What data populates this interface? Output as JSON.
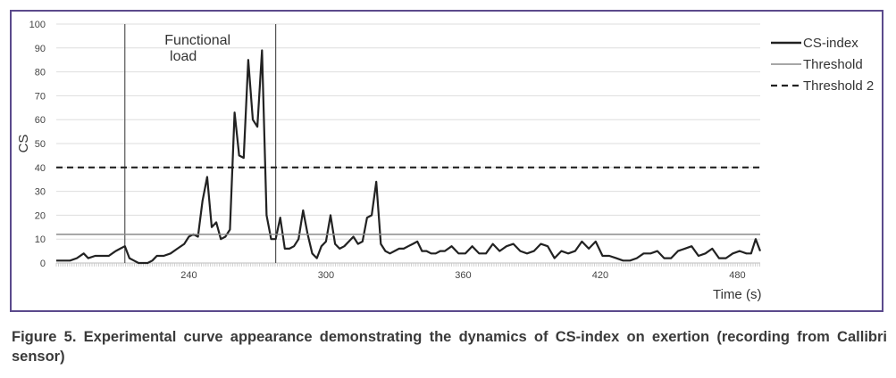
{
  "caption": "Figure 5. Experimental curve appearance demonstrating the dynamics of CS-index on exertion (recording from Callibri sensor)",
  "chart_data": {
    "type": "line",
    "xlabel": "Time (s)",
    "ylabel": "CS",
    "xlim": [
      182,
      490
    ],
    "ylim": [
      0,
      100
    ],
    "x_ticks": [
      240,
      300,
      360,
      420,
      480
    ],
    "y_ticks": [
      0,
      10,
      20,
      30,
      40,
      50,
      60,
      70,
      80,
      90,
      100
    ],
    "grid": "horizontal",
    "legend_position": "right",
    "annotations": [
      {
        "text_lines": [
          "Functional",
          "load"
        ],
        "x_start": 212,
        "x_end": 278
      }
    ],
    "vertical_markers": [
      212,
      278
    ],
    "series": [
      {
        "name": "CS-index",
        "style": "solid-thick",
        "color": "#222222",
        "x": [
          182,
          185,
          188,
          191,
          194,
          196,
          199,
          202,
          205,
          208,
          210,
          212,
          214,
          216,
          218,
          220,
          222,
          224,
          226,
          229,
          232,
          235,
          238,
          240,
          242,
          244,
          246,
          248,
          250,
          252,
          254,
          256,
          258,
          260,
          262,
          264,
          266,
          268,
          270,
          272,
          274,
          276,
          278,
          280,
          282,
          284,
          286,
          288,
          290,
          292,
          294,
          296,
          298,
          300,
          302,
          304,
          306,
          308,
          310,
          312,
          314,
          316,
          318,
          320,
          322,
          324,
          326,
          328,
          330,
          332,
          334,
          336,
          338,
          340,
          342,
          344,
          346,
          348,
          350,
          352,
          355,
          358,
          361,
          364,
          367,
          370,
          373,
          376,
          379,
          382,
          385,
          388,
          391,
          394,
          397,
          400,
          403,
          406,
          409,
          412,
          415,
          418,
          421,
          424,
          427,
          430,
          433,
          436,
          439,
          442,
          445,
          448,
          451,
          454,
          457,
          460,
          463,
          466,
          469,
          472,
          475,
          478,
          481,
          484,
          486,
          488,
          490
        ],
        "values": [
          1,
          1,
          1,
          2,
          4,
          2,
          3,
          3,
          3,
          5,
          6,
          7,
          2,
          1,
          0,
          0,
          0,
          1,
          3,
          3,
          4,
          6,
          8,
          11,
          12,
          11,
          26,
          36,
          15,
          17,
          10,
          11,
          14,
          63,
          45,
          44,
          85,
          60,
          57,
          89,
          20,
          10,
          10,
          19,
          6,
          6,
          7,
          10,
          22,
          12,
          4,
          2,
          7,
          9,
          20,
          8,
          6,
          7,
          9,
          11,
          8,
          9,
          19,
          20,
          34,
          8,
          5,
          4,
          5,
          6,
          6,
          7,
          8,
          9,
          5,
          5,
          4,
          4,
          5,
          5,
          7,
          4,
          4,
          7,
          4,
          4,
          8,
          5,
          7,
          8,
          5,
          4,
          5,
          8,
          7,
          2,
          5,
          4,
          5,
          9,
          6,
          9,
          3,
          3,
          2,
          1,
          1,
          2,
          4,
          4,
          5,
          2,
          2,
          5,
          6,
          7,
          3,
          4,
          6,
          2,
          2,
          4,
          5,
          4,
          4,
          10,
          5
        ]
      },
      {
        "name": "Threshold",
        "style": "solid-thin",
        "color": "#8a8a8a",
        "value": 12
      },
      {
        "name": "Threshold 2",
        "style": "dashed",
        "color": "#222222",
        "value": 40
      }
    ]
  }
}
